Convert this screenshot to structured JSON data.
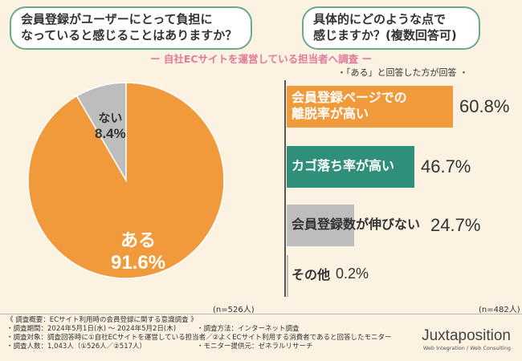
{
  "questions": {
    "q1": "会員登録がユーザーにとって負担に\nなっていると感じることはありますか？",
    "q2": "具体的にどのような点で\n感じますか？(複数回答可)"
  },
  "subtitle": "ー 自社ECサイトを運営している担当者へ調査 ー",
  "bar_note": "・「ある」と回答した方が回答 ・",
  "chart_data": [
    {
      "type": "pie",
      "categories": [
        "ある",
        "ない"
      ],
      "values": [
        91.6,
        8.4
      ],
      "value_labels": [
        "91.6%",
        "8.4%"
      ],
      "colors": [
        "#f09a3c",
        "#bdbdbd"
      ],
      "n_label": "(n=526人)"
    },
    {
      "type": "bar",
      "categories": [
        "会員登録ページでの\n離脱率が高い",
        "カゴ落ち率が高い",
        "会員登録数が伸びない",
        "その他"
      ],
      "values": [
        60.8,
        46.7,
        24.7,
        0.2
      ],
      "value_labels": [
        "60.8%",
        "46.7%",
        "24.7%",
        "0.2%"
      ],
      "colors": [
        "#f09a3c",
        "#2f8f7a",
        "#bdbdbd",
        "#bdbdbd"
      ],
      "n_label": "(n=482人)"
    }
  ],
  "footer": {
    "lines_left": [
      "《 調査概要：ECサイト利用時の会員登録に関する意識調査 》",
      "・調査期間：2024年5月1日(水) ～ 2024年5月2日(木)",
      "・調査対象：調査回答時に①自社ECサイトを運営している担当者／②よくECサイト利用する消費者であると回答したモニター",
      "・調査人数：1,043人（①526人／②517人）"
    ],
    "lines_right": [
      "・調査方法：インターネット調査",
      "・モニター提供元：ゼネラルリサーチ"
    ]
  },
  "logo": {
    "name": "Juxtaposition",
    "tagline": "Web Integration / Web Consulting"
  }
}
